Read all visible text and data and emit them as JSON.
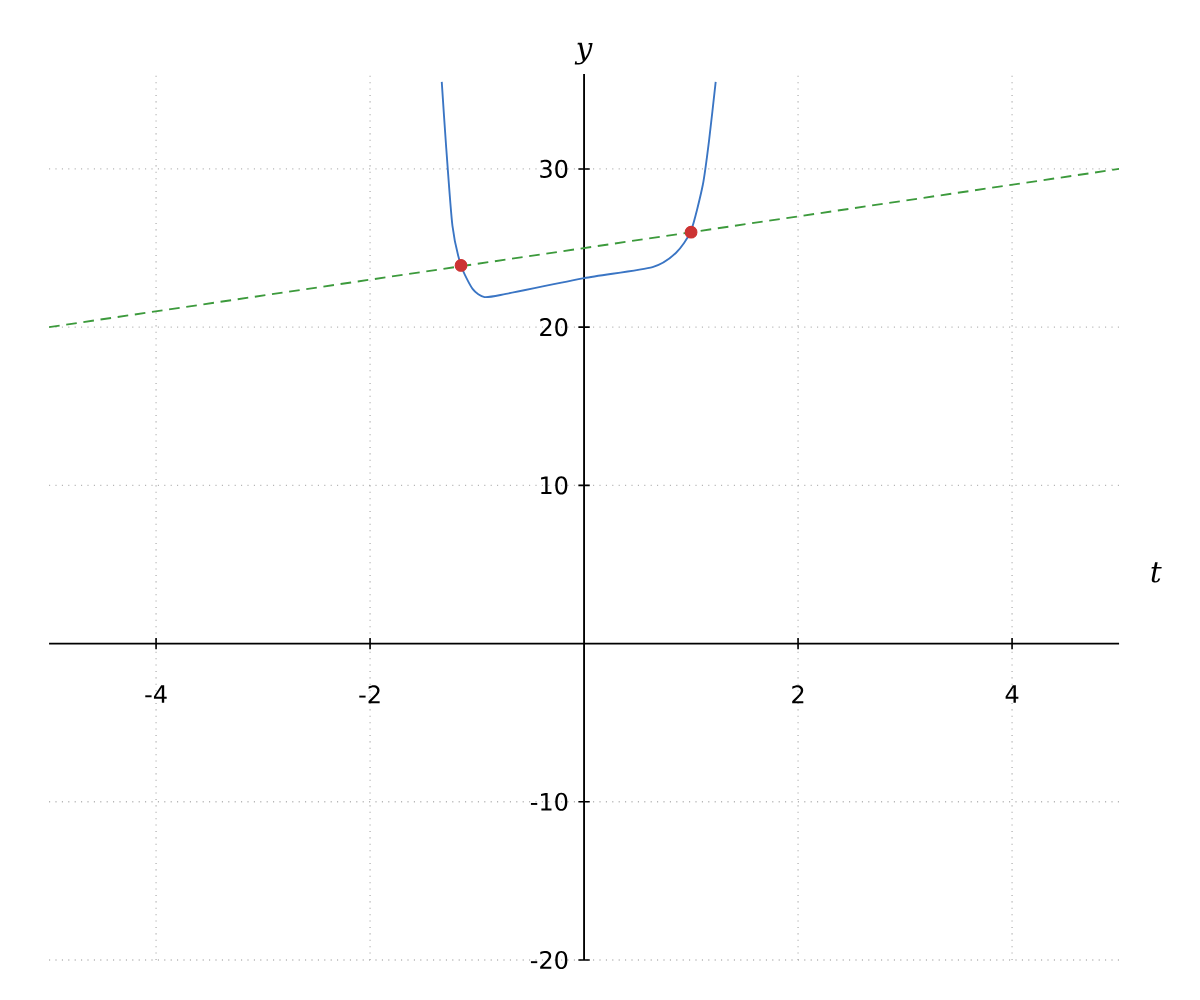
{
  "chart_data": {
    "type": "line",
    "xlabel": "t",
    "ylabel": "y",
    "xlim": [
      -5,
      5
    ],
    "ylim": [
      -20,
      36
    ],
    "xticks": [
      -4,
      -2,
      2,
      4
    ],
    "yticks": [
      -20,
      -10,
      10,
      20,
      30
    ],
    "grid": true,
    "series": [
      {
        "color": "#3a75c4",
        "line_style": "solid",
        "marker": "none",
        "x": [
          -1.33,
          -1.29,
          -1.23,
          -1.15,
          -1.04,
          -0.93,
          -0.73,
          0,
          0.64,
          0.86,
          1.0,
          1.11,
          1.17,
          1.23
        ],
        "values": [
          35.5,
          31.5,
          26.4,
          23.9,
          22.4,
          21.9,
          22.1,
          23.1,
          23.8,
          24.7,
          26.1,
          29.0,
          31.9,
          35.5
        ]
      },
      {
        "color": "#3c9a3c",
        "line_style": "dashed",
        "marker": "none",
        "x": [
          -5,
          5
        ],
        "values": [
          20,
          30
        ]
      },
      {
        "type": "scatter",
        "color": "#cc3333",
        "marker": "circle",
        "x": [
          -1.15,
          1.0
        ],
        "values": [
          23.9,
          26.0
        ]
      }
    ]
  }
}
